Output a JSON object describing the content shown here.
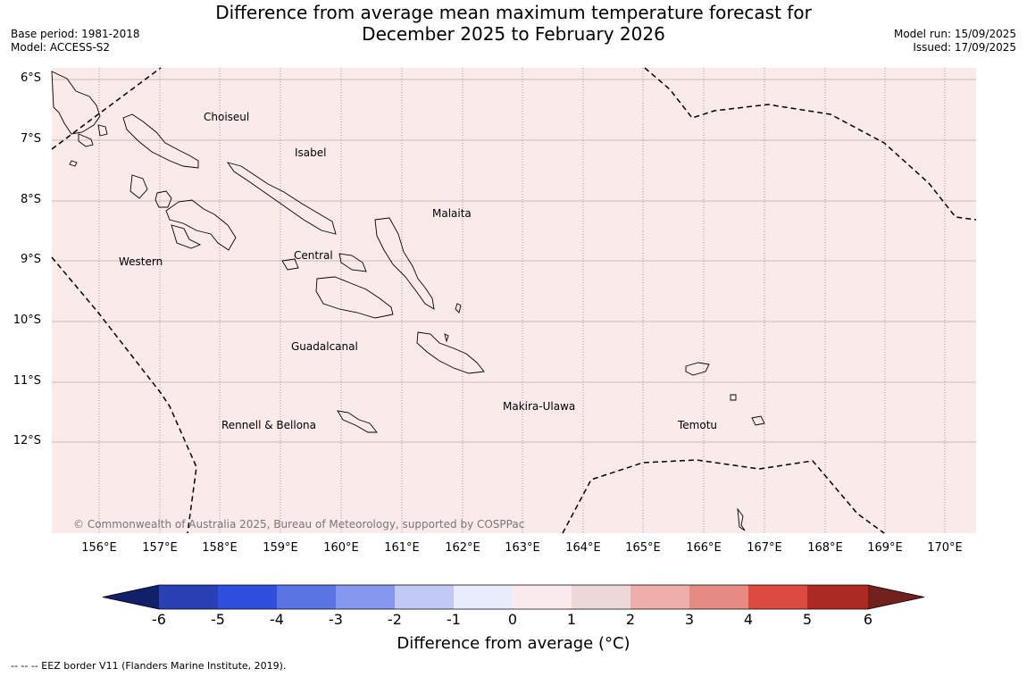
{
  "title": {
    "line1": "Difference from average mean maximum temperature forecast for",
    "line2": "December 2025 to February 2026"
  },
  "meta_left": [
    "Base period: 1981-2018",
    "Model: ACCESS-S2"
  ],
  "meta_right": [
    "Model run: 15/09/2025",
    "Issued: 17/09/2025"
  ],
  "map": {
    "background_color": "#fbeaea",
    "lat_labels": [
      "6°S",
      "7°S",
      "8°S",
      "9°S",
      "10°S",
      "11°S",
      "12°S"
    ],
    "lon_labels": [
      "156°E",
      "157°E",
      "158°E",
      "159°E",
      "160°E",
      "161°E",
      "162°E",
      "163°E",
      "164°E",
      "165°E",
      "166°E",
      "167°E",
      "168°E",
      "169°E",
      "170°E"
    ],
    "regions": [
      "Choiseul",
      "Isabel",
      "Malaita",
      "Central",
      "Western",
      "Guadalcanal",
      "Makira-Ulawa",
      "Rennell & Bellona",
      "Temotu"
    ],
    "copyright": "© Commonwealth of Australia 2025, Bureau of Meteorology, supported by COSPPac"
  },
  "colorbar": {
    "title": "Difference from average (°C)",
    "ticks": [
      "-6",
      "-5",
      "-4",
      "-3",
      "-2",
      "-1",
      "0",
      "1",
      "2",
      "3",
      "4",
      "5",
      "6"
    ],
    "colors": [
      "#12206a",
      "#2840b2",
      "#2f4fdc",
      "#5a74e4",
      "#8497ec",
      "#c2caf4",
      "#e8ecfb",
      "#fcebec",
      "#ecd8d8",
      "#eeaeaa",
      "#e68a82",
      "#dd4a40",
      "#ad2a22",
      "#72201b"
    ]
  },
  "footnote": "--  --  -- EEZ border V11 (Flanders Marine Institute, 2019)."
}
